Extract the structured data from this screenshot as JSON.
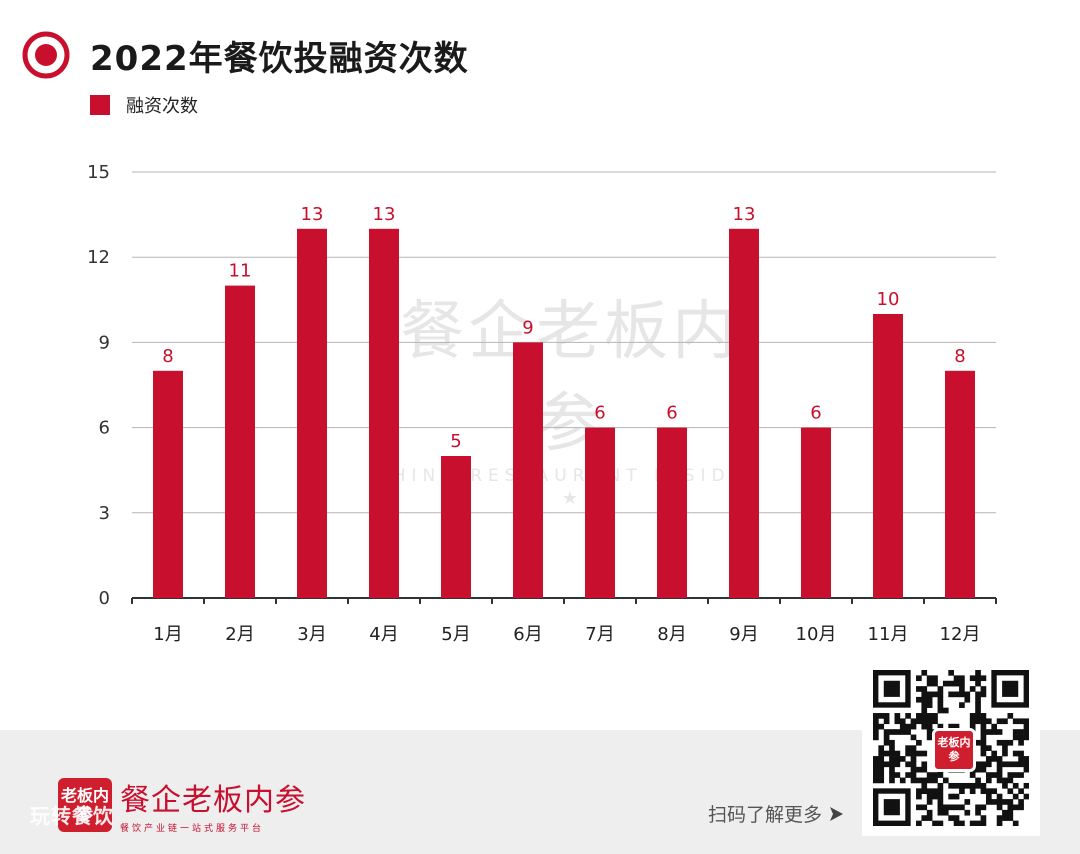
{
  "header": {
    "title": "2022年餐饮投融资次数"
  },
  "legend": {
    "label": "融资次数"
  },
  "colors": {
    "bar": "#c8102e",
    "label": "#c8102e",
    "grid": "#b5b5b5",
    "axis": "#333333",
    "footer_bg": "#eeeeee"
  },
  "chart_data": {
    "type": "bar",
    "title": "2022年餐饮投融资次数",
    "categories": [
      "1月",
      "2月",
      "3月",
      "4月",
      "5月",
      "6月",
      "7月",
      "8月",
      "9月",
      "10月",
      "11月",
      "12月"
    ],
    "series": [
      {
        "name": "融资次数",
        "values": [
          8,
          11,
          13,
          13,
          5,
          9,
          6,
          6,
          13,
          6,
          10,
          8
        ]
      }
    ],
    "ylim": [
      0,
      15
    ],
    "yticks": [
      0,
      3,
      6,
      9,
      12,
      15
    ],
    "xlabel": "",
    "ylabel": "",
    "grid": true,
    "data_labels": true,
    "legend_position": "top-left"
  },
  "watermark": {
    "main": "餐企老板内参",
    "sub": "CHINA RESTAURANT INSIDER"
  },
  "footer": {
    "brand_logo": "老板内参",
    "brand_name": "餐企老板内参",
    "brand_slogan": "餐饮产业链一站式服务平台",
    "overlay": "玩转餐饮",
    "scan_text": "扫码了解更多",
    "qr_logo": "老板内参"
  }
}
